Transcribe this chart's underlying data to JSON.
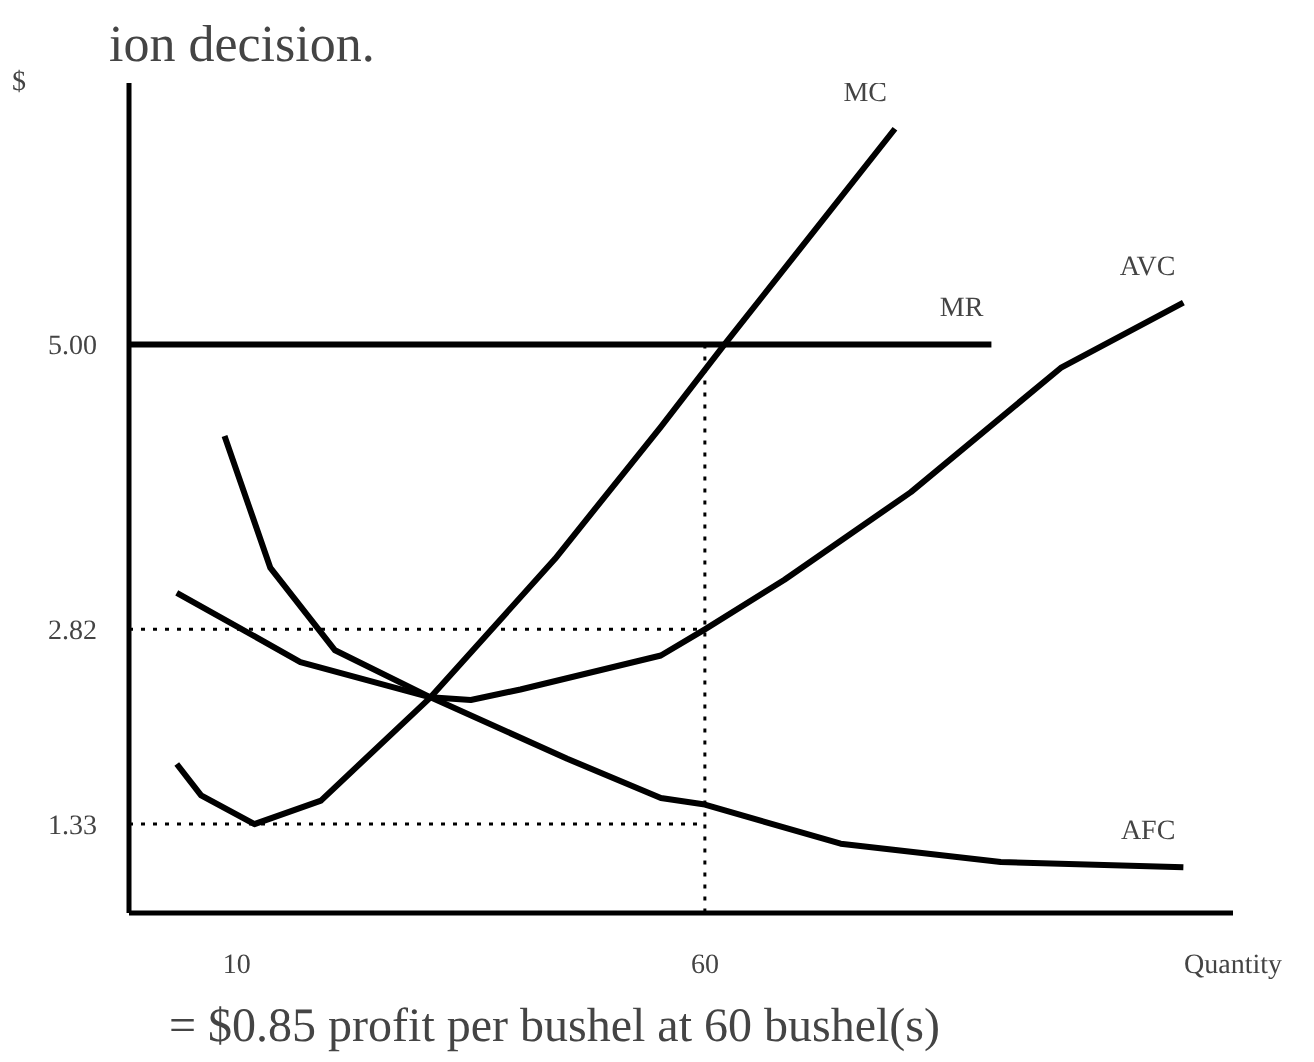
{
  "chart_data": {
    "type": "line",
    "title": "ion decision.",
    "ylabel": "$",
    "xlabel": "Quantity",
    "annotations": [
      "= $0.85 profit per bushel at 60 bushel(s)"
    ],
    "xlim": [
      -1.5,
      116.4
    ],
    "ylim": [
      0.65,
      7.0
    ],
    "xticks": [
      10,
      60
    ],
    "yticks": [
      1.33,
      2.82,
      {
        "value": 5,
        "label": "5.00"
      }
    ],
    "grid": false,
    "legend": false,
    "marker": "none",
    "series": [
      {
        "name": "MC",
        "color": "#000000",
        "x": [
          3.6,
          6.2,
          11.9,
          19,
          30.7,
          44,
          55.3,
          62.1,
          80.3
        ],
        "values": [
          1.79,
          1.55,
          1.33,
          1.51,
          2.3,
          3.36,
          4.37,
          5.0,
          6.65
        ]
      },
      {
        "name": "MR",
        "color": "#000000",
        "x": [
          -1.5,
          90.6
        ],
        "values": [
          5.0,
          5.0
        ]
      },
      {
        "name": "AVC",
        "color": "#000000",
        "x": [
          3.6,
          16.8,
          30.7,
          35,
          40.3,
          55.3,
          60,
          68.5,
          82,
          98,
          111.1
        ],
        "values": [
          3.1,
          2.57,
          2.3,
          2.28,
          2.36,
          2.62,
          2.82,
          3.2,
          3.87,
          4.82,
          5.32
        ]
      },
      {
        "name": "AFC",
        "color": "#000000",
        "x": [
          8.7,
          13.6,
          20.5,
          30.7,
          45.3,
          55.3,
          60,
          74.5,
          91.6,
          111.1
        ],
        "values": [
          4.3,
          3.29,
          2.66,
          2.3,
          1.83,
          1.53,
          1.48,
          1.18,
          1.04,
          1.0
        ]
      },
      {
        "color": "#000000",
        "line_style": "dotted",
        "x": [
          -1.5,
          60
        ],
        "values": [
          2.82,
          2.82
        ]
      },
      {
        "color": "#000000",
        "line_style": "dotted",
        "x": [
          -1.5,
          60
        ],
        "values": [
          1.33,
          1.33
        ]
      },
      {
        "color": "#000000",
        "line_style": "dotted",
        "x": [
          60,
          60
        ],
        "values": [
          5.0,
          0.65
        ]
      }
    ]
  }
}
